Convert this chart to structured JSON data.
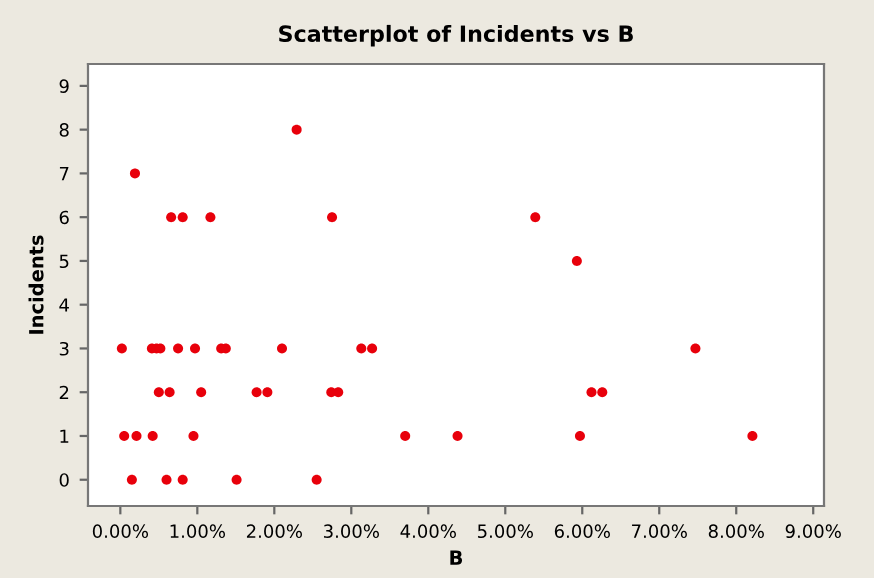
{
  "chart_data": {
    "type": "scatter",
    "title": "Scatterplot of Incidents vs B",
    "xlabel": "B",
    "ylabel": "Incidents",
    "x": [
      0.15,
      0.6,
      0.81,
      1.51,
      2.55,
      0.05,
      0.21,
      0.42,
      0.95,
      3.7,
      4.38,
      5.97,
      8.21,
      0.5,
      0.64,
      1.05,
      1.77,
      1.91,
      2.74,
      2.83,
      6.12,
      6.26,
      0.02,
      0.41,
      0.47,
      0.52,
      0.75,
      0.97,
      1.31,
      1.37,
      2.1,
      3.13,
      3.27,
      7.47,
      5.93,
      0.66,
      0.81,
      1.17,
      2.75,
      5.39,
      0.19,
      2.29
    ],
    "values": [
      0,
      0,
      0,
      0,
      0,
      1,
      1,
      1,
      1,
      1,
      1,
      1,
      1,
      2,
      2,
      2,
      2,
      2,
      2,
      2,
      2,
      2,
      3,
      3,
      3,
      3,
      3,
      3,
      3,
      3,
      3,
      3,
      3,
      3,
      5,
      6,
      6,
      6,
      6,
      6,
      7,
      8
    ],
    "color": "#e8000b",
    "marker": "circle",
    "xlim": [
      -0.42,
      9.14
    ],
    "ylim": [
      -0.6,
      9.5
    ],
    "xticks": [
      {
        "value": 0,
        "label": "0.00%"
      },
      {
        "value": 1,
        "label": "1.00%"
      },
      {
        "value": 2,
        "label": "2.00%"
      },
      {
        "value": 3,
        "label": "3.00%"
      },
      {
        "value": 4,
        "label": "4.00%"
      },
      {
        "value": 5,
        "label": "5.00%"
      },
      {
        "value": 6,
        "label": "6.00%"
      },
      {
        "value": 7,
        "label": "7.00%"
      },
      {
        "value": 8,
        "label": "8.00%"
      },
      {
        "value": 9,
        "label": "9.00%"
      }
    ],
    "yticks": [
      0,
      1,
      2,
      3,
      4,
      5,
      6,
      7,
      8,
      9
    ],
    "grid": false,
    "legend": false
  }
}
